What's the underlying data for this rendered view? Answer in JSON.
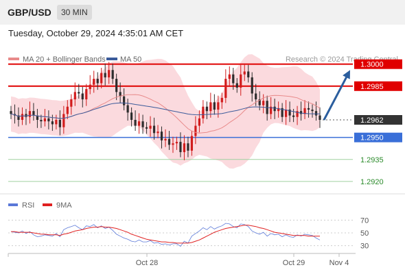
{
  "header": {
    "pair": "GBP/USD",
    "timeframe": "30 MIN"
  },
  "datetime": "Tuesday, October 29, 2024 4:35:01 AM CET",
  "legend": {
    "ma20": "MA 20 + Bollinger Bands",
    "ma50": "MA 50",
    "credit": "Research © 2024 Trading Central",
    "rsi": "RSI",
    "ma9": "9MA"
  },
  "colors": {
    "resistance": "#e00000",
    "support": "#3a6fd8",
    "green": "#2a8a2a",
    "bollinger": "#fad4d8",
    "ma20": "#e88a8a",
    "ma50": "#3a5a9a",
    "rsi": "#5a78d8",
    "rsi_ma": "#e02020",
    "candle_up": "#d11c1c",
    "candle_down": "#2d2d2d",
    "arrow": "#2b5e9e",
    "current": "#333333"
  },
  "chart_data": [
    {
      "type": "candlestick",
      "y_range": [
        1.2912,
        1.3012
      ],
      "levels": [
        {
          "value": 1.3,
          "label": "1.3000",
          "kind": "resistance"
        },
        {
          "value": 1.2985,
          "label": "1.2985",
          "kind": "resistance"
        },
        {
          "value": 1.2962,
          "label": "1.2962",
          "kind": "current"
        },
        {
          "value": 1.295,
          "label": "1.2950",
          "kind": "support"
        },
        {
          "value": 1.2935,
          "label": "1.2935",
          "kind": "target"
        },
        {
          "value": 1.292,
          "label": "1.2920",
          "kind": "target"
        }
      ],
      "x_labels": [
        "Oct 28",
        "Oct 29",
        "Nov 4"
      ],
      "forecast": {
        "from": 1.2962,
        "to": 1.2996
      },
      "close": [
        1.2966,
        1.2965,
        1.2962,
        1.2966,
        1.2964,
        1.2968,
        1.2965,
        1.2962,
        1.2961,
        1.2963,
        1.2961,
        1.2959,
        1.2962,
        1.2957,
        1.2966,
        1.2971,
        1.2976,
        1.2981,
        1.298,
        1.2976,
        1.2983,
        1.2986,
        1.299,
        1.2987,
        1.2994,
        1.2991,
        1.2996,
        1.299,
        1.2981,
        1.2978,
        1.2972,
        1.2967,
        1.2962,
        1.2958,
        1.2961,
        1.2957,
        1.2956,
        1.2958,
        1.2953,
        1.2954,
        1.2948,
        1.2949,
        1.2945,
        1.2946,
        1.2947,
        1.294,
        1.2946,
        1.2941,
        1.2951,
        1.2958,
        1.2963,
        1.2971,
        1.2968,
        1.2974,
        1.2969,
        1.2974,
        1.2977,
        1.299,
        1.2993,
        1.2987,
        1.2984,
        1.2993,
        1.2995,
        1.2991,
        1.298,
        1.2976,
        1.2972,
        1.2975,
        1.2966,
        1.2971,
        1.2968,
        1.297,
        1.2964,
        1.2969,
        1.2965,
        1.2964,
        1.2968,
        1.2966,
        1.297,
        1.2969,
        1.2968,
        1.2965,
        1.2962
      ]
    },
    {
      "type": "line",
      "y_range": [
        20,
        80
      ],
      "y_ticks": [
        70,
        50,
        30
      ],
      "series": [
        {
          "name": "RSI",
          "values": [
            52,
            51,
            50,
            53,
            49,
            52,
            47,
            44,
            45,
            47,
            46,
            45,
            49,
            44,
            55,
            58,
            60,
            62,
            58,
            55,
            61,
            60,
            63,
            58,
            61,
            57,
            59,
            54,
            48,
            45,
            42,
            40,
            37,
            36,
            39,
            36,
            36,
            38,
            34,
            35,
            32,
            33,
            31,
            33,
            33,
            29,
            37,
            34,
            45,
            49,
            53,
            58,
            55,
            60,
            56,
            59,
            61,
            65,
            64,
            60,
            58,
            64,
            63,
            60,
            53,
            50,
            48,
            51,
            45,
            49,
            47,
            48,
            44,
            47,
            44,
            43,
            47,
            45,
            48,
            47,
            46,
            42,
            39
          ]
        },
        {
          "name": "9MA",
          "values": [
            52,
            52,
            51,
            51,
            51,
            51,
            50,
            49,
            48,
            48,
            47,
            47,
            47,
            46,
            48,
            49,
            51,
            53,
            54,
            55,
            57,
            58,
            59,
            59,
            60,
            59,
            59,
            58,
            57,
            55,
            53,
            51,
            48,
            46,
            44,
            42,
            40,
            39,
            38,
            37,
            36,
            36,
            35,
            35,
            34,
            34,
            34,
            34,
            35,
            37,
            39,
            42,
            45,
            48,
            51,
            53,
            55,
            57,
            58,
            59,
            60,
            61,
            62,
            62,
            61,
            60,
            58,
            57,
            55,
            53,
            51,
            50,
            49,
            48,
            47,
            46,
            46,
            46,
            46,
            45,
            45,
            45,
            45
          ]
        }
      ],
      "x_labels": [
        "Oct 28",
        "Oct 29",
        "Nov 4"
      ]
    }
  ]
}
